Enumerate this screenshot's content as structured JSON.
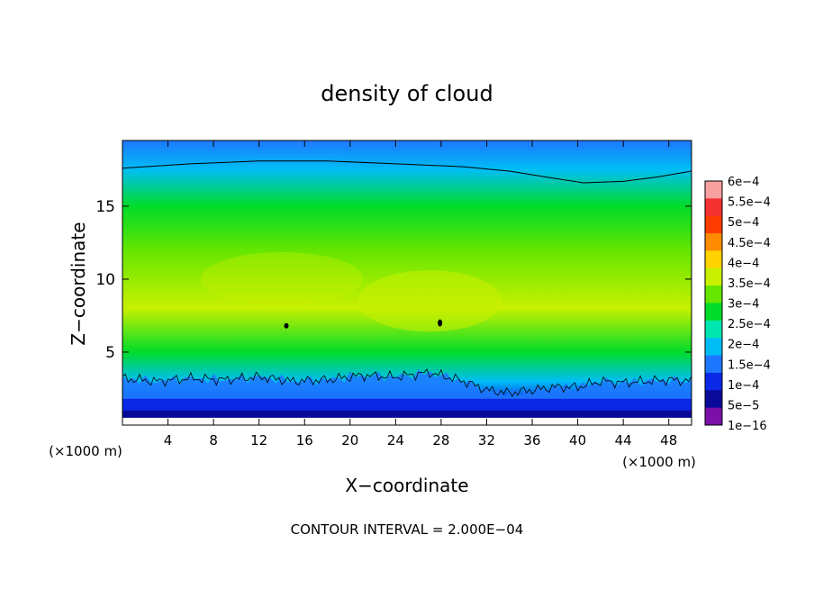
{
  "chart_data": {
    "type": "heatmap",
    "title": "density of cloud",
    "xlabel": "X−coordinate",
    "ylabel": "Z−coordinate",
    "x_unit_label": "(×1000 m)",
    "y_unit_label": "(×1000 m)",
    "xlim": [
      0,
      50
    ],
    "ylim": [
      0,
      19.5
    ],
    "x_ticks": [
      4,
      8,
      12,
      16,
      20,
      24,
      28,
      32,
      36,
      40,
      44,
      48
    ],
    "x_tick_labels": [
      "4",
      "8",
      "12",
      "16",
      "20",
      "24",
      "28",
      "32",
      "36",
      "40",
      "44",
      "48"
    ],
    "y_ticks": [
      5,
      10,
      15
    ],
    "y_tick_labels": [
      "5",
      "10",
      "15"
    ],
    "colorbar": {
      "labels": [
        "6e−4",
        "5.5e−4",
        "5e−4",
        "4.5e−4",
        "4e−4",
        "3.5e−4",
        "3e−4",
        "2.5e−4",
        "2e−4",
        "1.5e−4",
        "1e−4",
        "5e−5",
        "1e−16"
      ],
      "values": [
        0.0006,
        0.00055,
        0.0005,
        0.00045,
        0.0004,
        0.00035,
        0.0003,
        0.00025,
        0.0002,
        0.00015,
        0.0001,
        5e-05,
        1e-16
      ],
      "colors": [
        "#f7a0a0",
        "#f53030",
        "#ff3c00",
        "#ff8c00",
        "#ffd200",
        "#c8f000",
        "#64e600",
        "#00dc2a",
        "#00e6b0",
        "#00bef5",
        "#1e78ff",
        "#0a28e6",
        "#0a0a9a",
        "#7a10a8"
      ]
    },
    "contour_interval_text": "CONTOUR INTERVAL = 2.000E−04",
    "contour_levels": [
      0.0002
    ],
    "field_summary": [
      {
        "z": 0.5,
        "value": 3e-05
      },
      {
        "z": 1.5,
        "value": 8e-05
      },
      {
        "z": 3,
        "value": 0.00017
      },
      {
        "z": 5,
        "value": 0.00028
      },
      {
        "z": 8,
        "value": 0.00036
      },
      {
        "z": 12,
        "value": 0.00033
      },
      {
        "z": 15,
        "value": 0.00028
      },
      {
        "z": 17.5,
        "value": 0.00019
      },
      {
        "z": 19.5,
        "value": 0.00012
      }
    ],
    "upper_contour": {
      "x": [
        0,
        6,
        12,
        18,
        24,
        30,
        34,
        38,
        40.5,
        44,
        47,
        50
      ],
      "z": [
        17.6,
        17.9,
        18.1,
        18.1,
        17.9,
        17.7,
        17.4,
        16.9,
        16.6,
        16.7,
        17.0,
        17.4
      ]
    },
    "lower_contour": {
      "x": [
        0,
        3,
        6,
        9,
        12,
        15,
        18,
        21,
        24,
        27,
        30,
        32,
        34,
        36,
        38,
        40,
        42,
        44,
        46,
        48,
        50
      ],
      "z": [
        3.2,
        3.0,
        3.2,
        3.1,
        3.3,
        3.0,
        3.1,
        3.4,
        3.3,
        3.6,
        3.0,
        2.4,
        2.2,
        2.4,
        2.6,
        2.6,
        3.0,
        2.9,
        3.0,
        3.1,
        3.0
      ]
    },
    "grid": false,
    "legend": "right"
  }
}
